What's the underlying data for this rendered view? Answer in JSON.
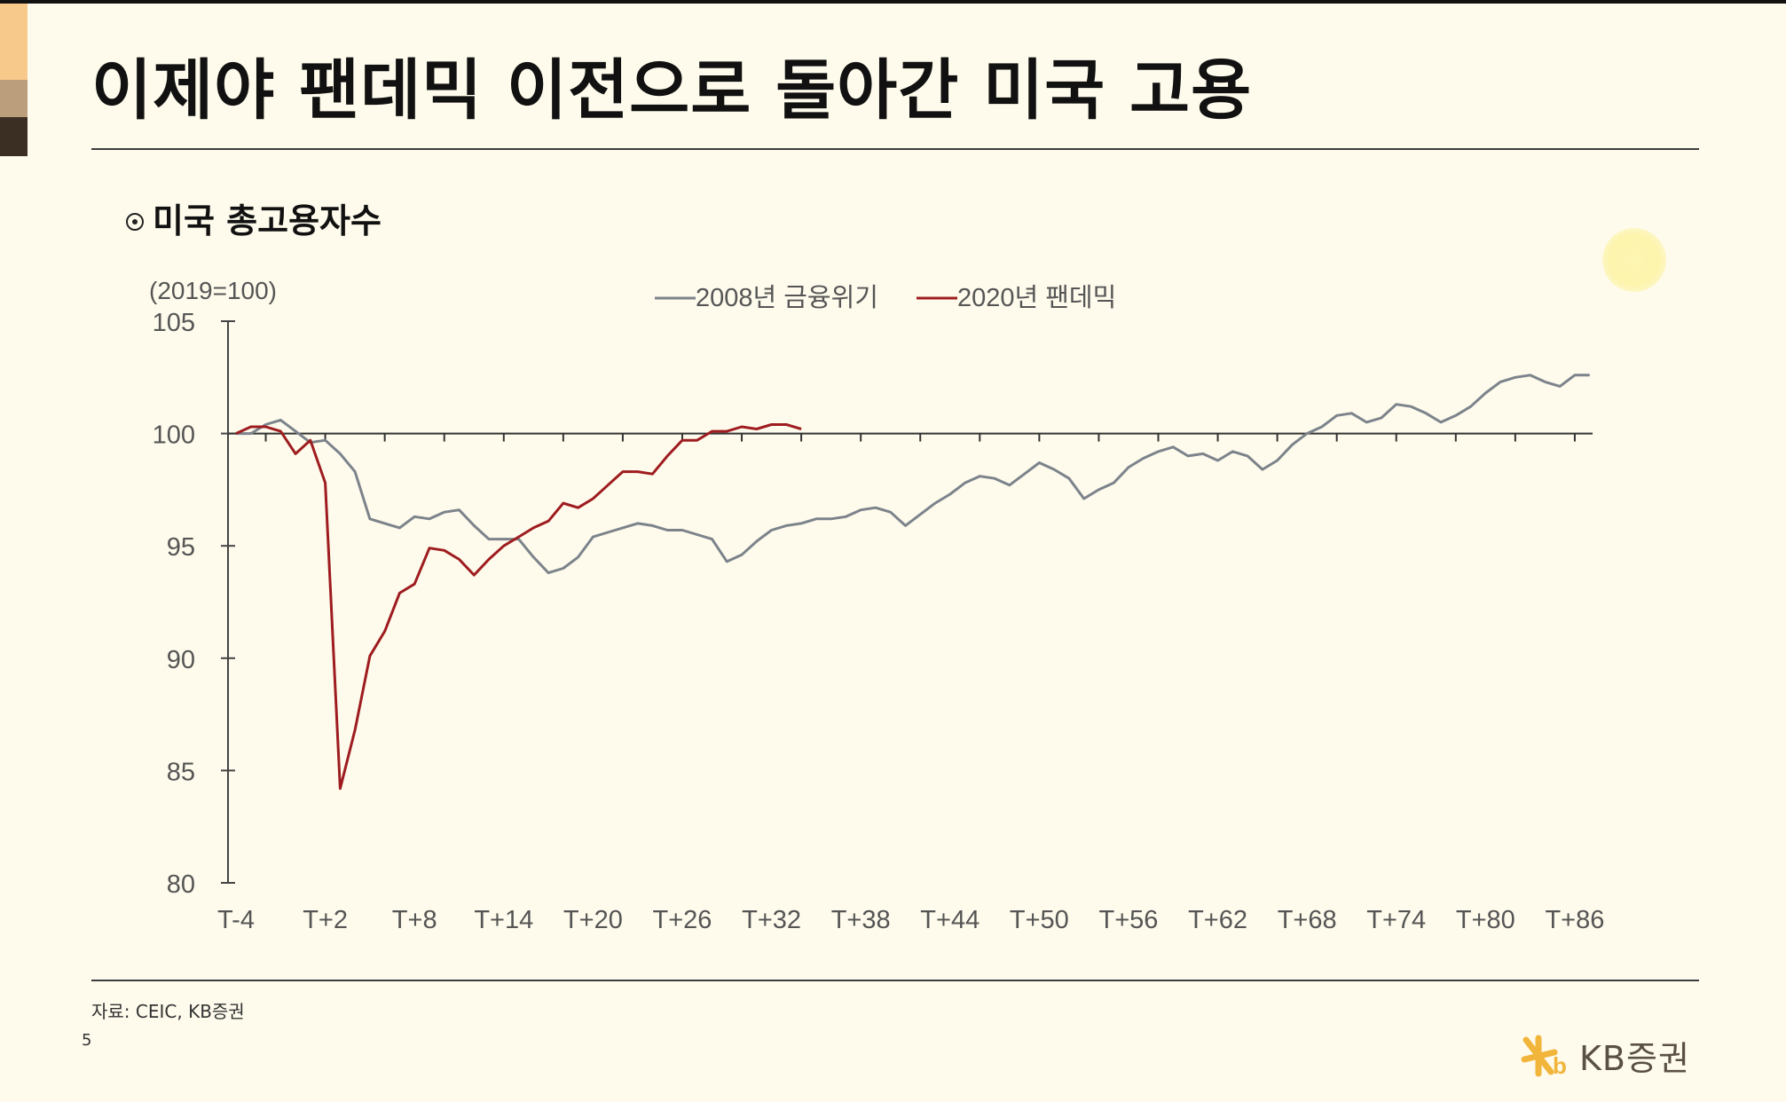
{
  "title": "이제야 팬데믹 이전으로 돌아간 미국 고용",
  "section_title": "미국 총고용자수",
  "source": "자료: CEIC, KB증권",
  "page_number": "5",
  "logo_text": "KB증권",
  "colors": {
    "background": "#fefbec",
    "series_2008": "#7c838b",
    "series_2020": "#9e1c1f",
    "accent_light": "#f7c98a",
    "accent_mid": "#bb9e7c",
    "accent_dark": "#3a2f22",
    "logo_star": "#f2b53c"
  },
  "chart_data": {
    "type": "line",
    "unit_label": "(2019=100)",
    "ylim": [
      80,
      105
    ],
    "yticks": [
      80,
      85,
      90,
      95,
      100,
      105
    ],
    "xlim": [
      -4,
      90
    ],
    "xticks": [
      -4,
      2,
      8,
      14,
      20,
      26,
      32,
      38,
      44,
      50,
      56,
      62,
      68,
      74,
      80,
      86
    ],
    "xtick_labels": [
      "T-4",
      "T+2",
      "T+8",
      "T+14",
      "T+20",
      "T+26",
      "T+32",
      "T+38",
      "T+44",
      "T+50",
      "T+56",
      "T+62",
      "T+68",
      "T+74",
      "T+80",
      "T+86"
    ],
    "reference_line": 100,
    "legend_position": "top-center",
    "series": [
      {
        "name": "2008년 금융위기",
        "color": "#7c838b",
        "x_start": -4,
        "values": [
          100.0,
          100.0,
          100.4,
          100.6,
          100.1,
          99.6,
          99.7,
          99.1,
          98.3,
          96.2,
          96.0,
          95.8,
          96.3,
          96.2,
          96.5,
          96.6,
          95.9,
          95.3,
          95.3,
          95.3,
          94.5,
          93.8,
          94.0,
          94.5,
          95.4,
          95.6,
          95.8,
          96.0,
          95.9,
          95.7,
          95.7,
          95.5,
          95.3,
          94.3,
          94.6,
          95.2,
          95.7,
          95.9,
          96.0,
          96.2,
          96.2,
          96.3,
          96.6,
          96.7,
          96.5,
          95.9,
          96.4,
          96.9,
          97.3,
          97.8,
          98.1,
          98.0,
          97.7,
          98.2,
          98.7,
          98.4,
          98.0,
          97.1,
          97.5,
          97.8,
          98.5,
          98.9,
          99.2,
          99.4,
          99.0,
          99.1,
          98.8,
          99.2,
          99.0,
          98.4,
          98.8,
          99.5,
          100.0,
          100.3,
          100.8,
          100.9,
          100.5,
          100.7,
          101.3,
          101.2,
          100.9,
          100.5,
          100.8,
          101.2,
          101.8,
          102.3,
          102.5,
          102.6,
          102.3,
          102.1,
          102.6,
          102.6
        ]
      },
      {
        "name": "2020년 팬데믹",
        "color": "#9e1c1f",
        "x_start": -4,
        "values": [
          100.0,
          100.3,
          100.3,
          100.1,
          99.1,
          99.7,
          97.8,
          84.2,
          86.8,
          90.1,
          91.2,
          92.9,
          93.3,
          94.9,
          94.8,
          94.4,
          93.7,
          94.4,
          95.0,
          95.4,
          95.8,
          96.1,
          96.9,
          96.7,
          97.1,
          97.7,
          98.3,
          98.3,
          98.2,
          99.0,
          99.7,
          99.7,
          100.1,
          100.1,
          100.3,
          100.2,
          100.4,
          100.4,
          100.2
        ]
      }
    ]
  }
}
